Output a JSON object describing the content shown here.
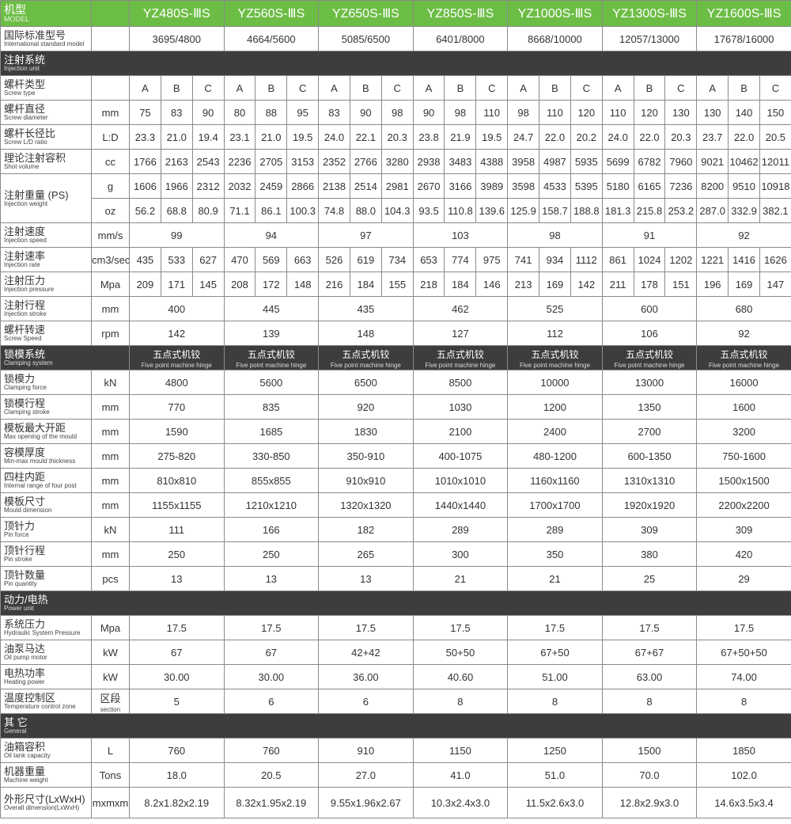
{
  "colors": {
    "header_green": "#6cbd45",
    "section_dark": "#3d3d3d",
    "border": "#8a8a8a"
  },
  "header": {
    "cn": "机型",
    "en": "MODEL"
  },
  "models": [
    "YZ480S-ⅢS",
    "YZ560S-ⅢS",
    "YZ650S-ⅢS",
    "YZ850S-ⅢS",
    "YZ1000S-ⅢS",
    "YZ1300S-ⅢS",
    "YZ1600S-ⅢS"
  ],
  "intl": {
    "cn": "国际标准型号",
    "en": "International standard model",
    "values": [
      "3695/4800",
      "4664/5600",
      "5085/6500",
      "6401/8000",
      "8668/10000",
      "12057/13000",
      "17678/16000"
    ]
  },
  "sections": [
    {
      "cn": "注射系统",
      "en": "Injection unit",
      "rows": [
        {
          "cn": "螺杆类型",
          "en": "Screw type",
          "unit": "",
          "values": [
            "A",
            "B",
            "C",
            "A",
            "B",
            "C",
            "A",
            "B",
            "C",
            "A",
            "B",
            "C",
            "A",
            "B",
            "C",
            "A",
            "B",
            "C",
            "A",
            "B",
            "C"
          ]
        },
        {
          "cn": "螺杆直径",
          "en": "Screw diameter",
          "unit": "mm",
          "values": [
            "75",
            "83",
            "90",
            "80",
            "88",
            "95",
            "83",
            "90",
            "98",
            "90",
            "98",
            "110",
            "98",
            "110",
            "120",
            "110",
            "120",
            "130",
            "130",
            "140",
            "150"
          ]
        },
        {
          "cn": "螺杆长径比",
          "en": "Screw L/D ratio",
          "unit": "L:D",
          "values": [
            "23.3",
            "21.0",
            "19.4",
            "23.1",
            "21.0",
            "19.5",
            "24.0",
            "22.1",
            "20.3",
            "23.8",
            "21.9",
            "19.5",
            "24.7",
            "22.0",
            "20.2",
            "24.0",
            "22.0",
            "20.3",
            "23.7",
            "22.0",
            "20.5"
          ]
        },
        {
          "cn": "理论注射容积",
          "en": "Shot volume",
          "unit": "cc",
          "values": [
            "1766",
            "2163",
            "2543",
            "2236",
            "2705",
            "3153",
            "2352",
            "2766",
            "3280",
            "2938",
            "3483",
            "4388",
            "3958",
            "4987",
            "5935",
            "5699",
            "6782",
            "7960",
            "9021",
            "10462",
            "12011"
          ]
        },
        {
          "cn": "注射重量 (PS)",
          "en": "Injection weight",
          "unit": "g",
          "merge_next": true,
          "values": [
            "1606",
            "1966",
            "2312",
            "2032",
            "2459",
            "2866",
            "2138",
            "2514",
            "2981",
            "2670",
            "3166",
            "3989",
            "3598",
            "4533",
            "5395",
            "5180",
            "6165",
            "7236",
            "8200",
            "9510",
            "10918"
          ]
        },
        {
          "unit": "oz",
          "values": [
            "56.2",
            "68.8",
            "80.9",
            "71.1",
            "86.1",
            "100.3",
            "74.8",
            "88.0",
            "104.3",
            "93.5",
            "110.8",
            "139.6",
            "125.9",
            "158.7",
            "188.8",
            "181.3",
            "215.8",
            "253.2",
            "287.0",
            "332.9",
            "382.1"
          ]
        },
        {
          "cn": "注射速度",
          "en": "Injection speed",
          "unit": "mm/s",
          "values": [
            "99",
            "94",
            "97",
            "103",
            "98",
            "91",
            "92"
          ]
        },
        {
          "cn": "注射速率",
          "en": "Injection rate",
          "unit": "cm3/sec",
          "values": [
            "435",
            "533",
            "627",
            "470",
            "569",
            "663",
            "526",
            "619",
            "734",
            "653",
            "774",
            "975",
            "741",
            "934",
            "1112",
            "861",
            "1024",
            "1202",
            "1221",
            "1416",
            "1626"
          ]
        },
        {
          "cn": "注射压力",
          "en": "Injection pressure",
          "unit": "Mpa",
          "values": [
            "209",
            "171",
            "145",
            "208",
            "172",
            "148",
            "216",
            "184",
            "155",
            "218",
            "184",
            "146",
            "213",
            "169",
            "142",
            "211",
            "178",
            "151",
            "196",
            "169",
            "147"
          ]
        },
        {
          "cn": "注射行程",
          "en": "Injection stroke",
          "unit": "mm",
          "values": [
            "400",
            "445",
            "435",
            "462",
            "525",
            "600",
            "680"
          ]
        },
        {
          "cn": "螺杆转速",
          "en": "Screw Speed",
          "unit": "rpm",
          "values": [
            "142",
            "139",
            "148",
            "127",
            "112",
            "106",
            "92"
          ]
        }
      ]
    },
    {
      "cn": "锁模系统",
      "en": "Clamping system",
      "hinge": {
        "cn": "五点式机铰",
        "en": "Five point machine hinge"
      },
      "rows": [
        {
          "cn": "锁模力",
          "en": "Clamping force",
          "unit": "kN",
          "values": [
            "4800",
            "5600",
            "6500",
            "8500",
            "10000",
            "13000",
            "16000"
          ]
        },
        {
          "cn": "锁模行程",
          "en": "Clamping stroke",
          "unit": "mm",
          "values": [
            "770",
            "835",
            "920",
            "1030",
            "1200",
            "1350",
            "1600"
          ]
        },
        {
          "cn": "模板最大开距",
          "en": "Max opening of the mould",
          "unit": "mm",
          "values": [
            "1590",
            "1685",
            "1830",
            "2100",
            "2400",
            "2700",
            "3200"
          ]
        },
        {
          "cn": "容模厚度",
          "en": "Min-max mould thickness",
          "unit": "mm",
          "values": [
            "275-820",
            "330-850",
            "350-910",
            "400-1075",
            "480-1200",
            "600-1350",
            "750-1600"
          ]
        },
        {
          "cn": "四柱内距",
          "en": "Internal range of four post",
          "unit": "mm",
          "values": [
            "810x810",
            "855x855",
            "910x910",
            "1010x1010",
            "1160x1160",
            "1310x1310",
            "1500x1500"
          ]
        },
        {
          "cn": "模板尺寸",
          "en": "Mould dimension",
          "unit": "mm",
          "values": [
            "1155x1155",
            "1210x1210",
            "1320x1320",
            "1440x1440",
            "1700x1700",
            "1920x1920",
            "2200x2200"
          ]
        },
        {
          "cn": "顶针力",
          "en": "Pin force",
          "unit": "kN",
          "values": [
            "111",
            "166",
            "182",
            "289",
            "289",
            "309",
            "309"
          ]
        },
        {
          "cn": "顶针行程",
          "en": "Pin stroke",
          "unit": "mm",
          "values": [
            "250",
            "250",
            "265",
            "300",
            "350",
            "380",
            "420"
          ]
        },
        {
          "cn": "顶针数量",
          "en": "Pin quantity",
          "unit": "pcs",
          "values": [
            "13",
            "13",
            "13",
            "21",
            "21",
            "25",
            "29"
          ]
        }
      ]
    },
    {
      "cn": "动力/电热",
      "en": "Power unit",
      "rows": [
        {
          "cn": "系统压力",
          "en": "Hydraulic System Pressure",
          "unit": "Mpa",
          "values": [
            "17.5",
            "17.5",
            "17.5",
            "17.5",
            "17.5",
            "17.5",
            "17.5"
          ]
        },
        {
          "cn": "油泵马达",
          "en": "Oil pump motor",
          "unit": "kW",
          "values": [
            "67",
            "67",
            "42+42",
            "50+50",
            "67+50",
            "67+67",
            "67+50+50"
          ]
        },
        {
          "cn": "电热功率",
          "en": "Heating power",
          "unit": "kW",
          "values": [
            "30.00",
            "30.00",
            "36.00",
            "40.60",
            "51.00",
            "63.00",
            "74.00"
          ]
        },
        {
          "cn": "温度控制区",
          "en": "Temperature control zone",
          "unit": "区段",
          "unit_en": "section",
          "values": [
            "5",
            "6",
            "6",
            "8",
            "8",
            "8",
            "8"
          ]
        }
      ]
    },
    {
      "cn": "其 它",
      "en": "General",
      "rows": [
        {
          "cn": "油箱容积",
          "en": "Oil tank capacity",
          "unit": "L",
          "values": [
            "760",
            "760",
            "910",
            "1150",
            "1250",
            "1500",
            "1850"
          ]
        },
        {
          "cn": "机器重量",
          "en": "Machine weight",
          "unit": "Tons",
          "values": [
            "18.0",
            "20.5",
            "27.0",
            "41.0",
            "51.0",
            "70.0",
            "102.0"
          ]
        },
        {
          "cn": "外形尺寸(LxWxH)",
          "en": "Overall dimension(LxWxH)",
          "unit": "mxmxm",
          "values": [
            "8.2x1.82x2.19",
            "8.32x1.95x2.19",
            "9.55x1.96x2.67",
            "10.3x2.4x3.0",
            "11.5x2.6x3.0",
            "12.8x2.9x3.0",
            "14.6x3.5x3.4"
          ]
        }
      ]
    }
  ]
}
